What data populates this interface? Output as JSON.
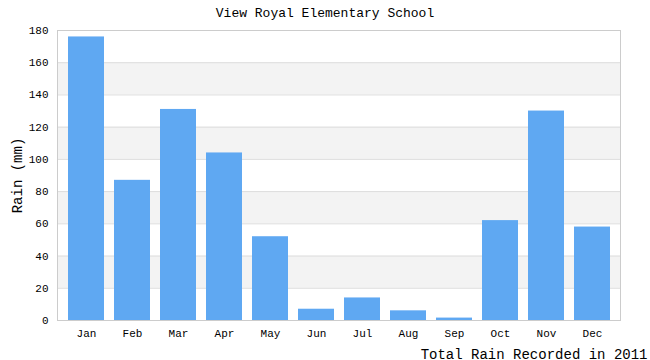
{
  "chart_data": {
    "type": "bar",
    "title": "View Royal Elementary School",
    "y_label": "Rain (mm)",
    "x_label": "Total Rain Recorded in 2011",
    "categories": [
      "Jan",
      "Feb",
      "Mar",
      "Apr",
      "May",
      "Jun",
      "Jul",
      "Aug",
      "Sep",
      "Oct",
      "Nov",
      "Dec"
    ],
    "values": [
      176,
      87,
      131,
      104,
      52,
      7,
      14,
      6,
      1.5,
      62,
      130,
      58
    ],
    "color": "#5fa8f2",
    "ylim": [
      0,
      180
    ],
    "yticks": [
      0,
      20,
      40,
      60,
      80,
      100,
      120,
      140,
      160,
      180
    ],
    "grid": true
  }
}
